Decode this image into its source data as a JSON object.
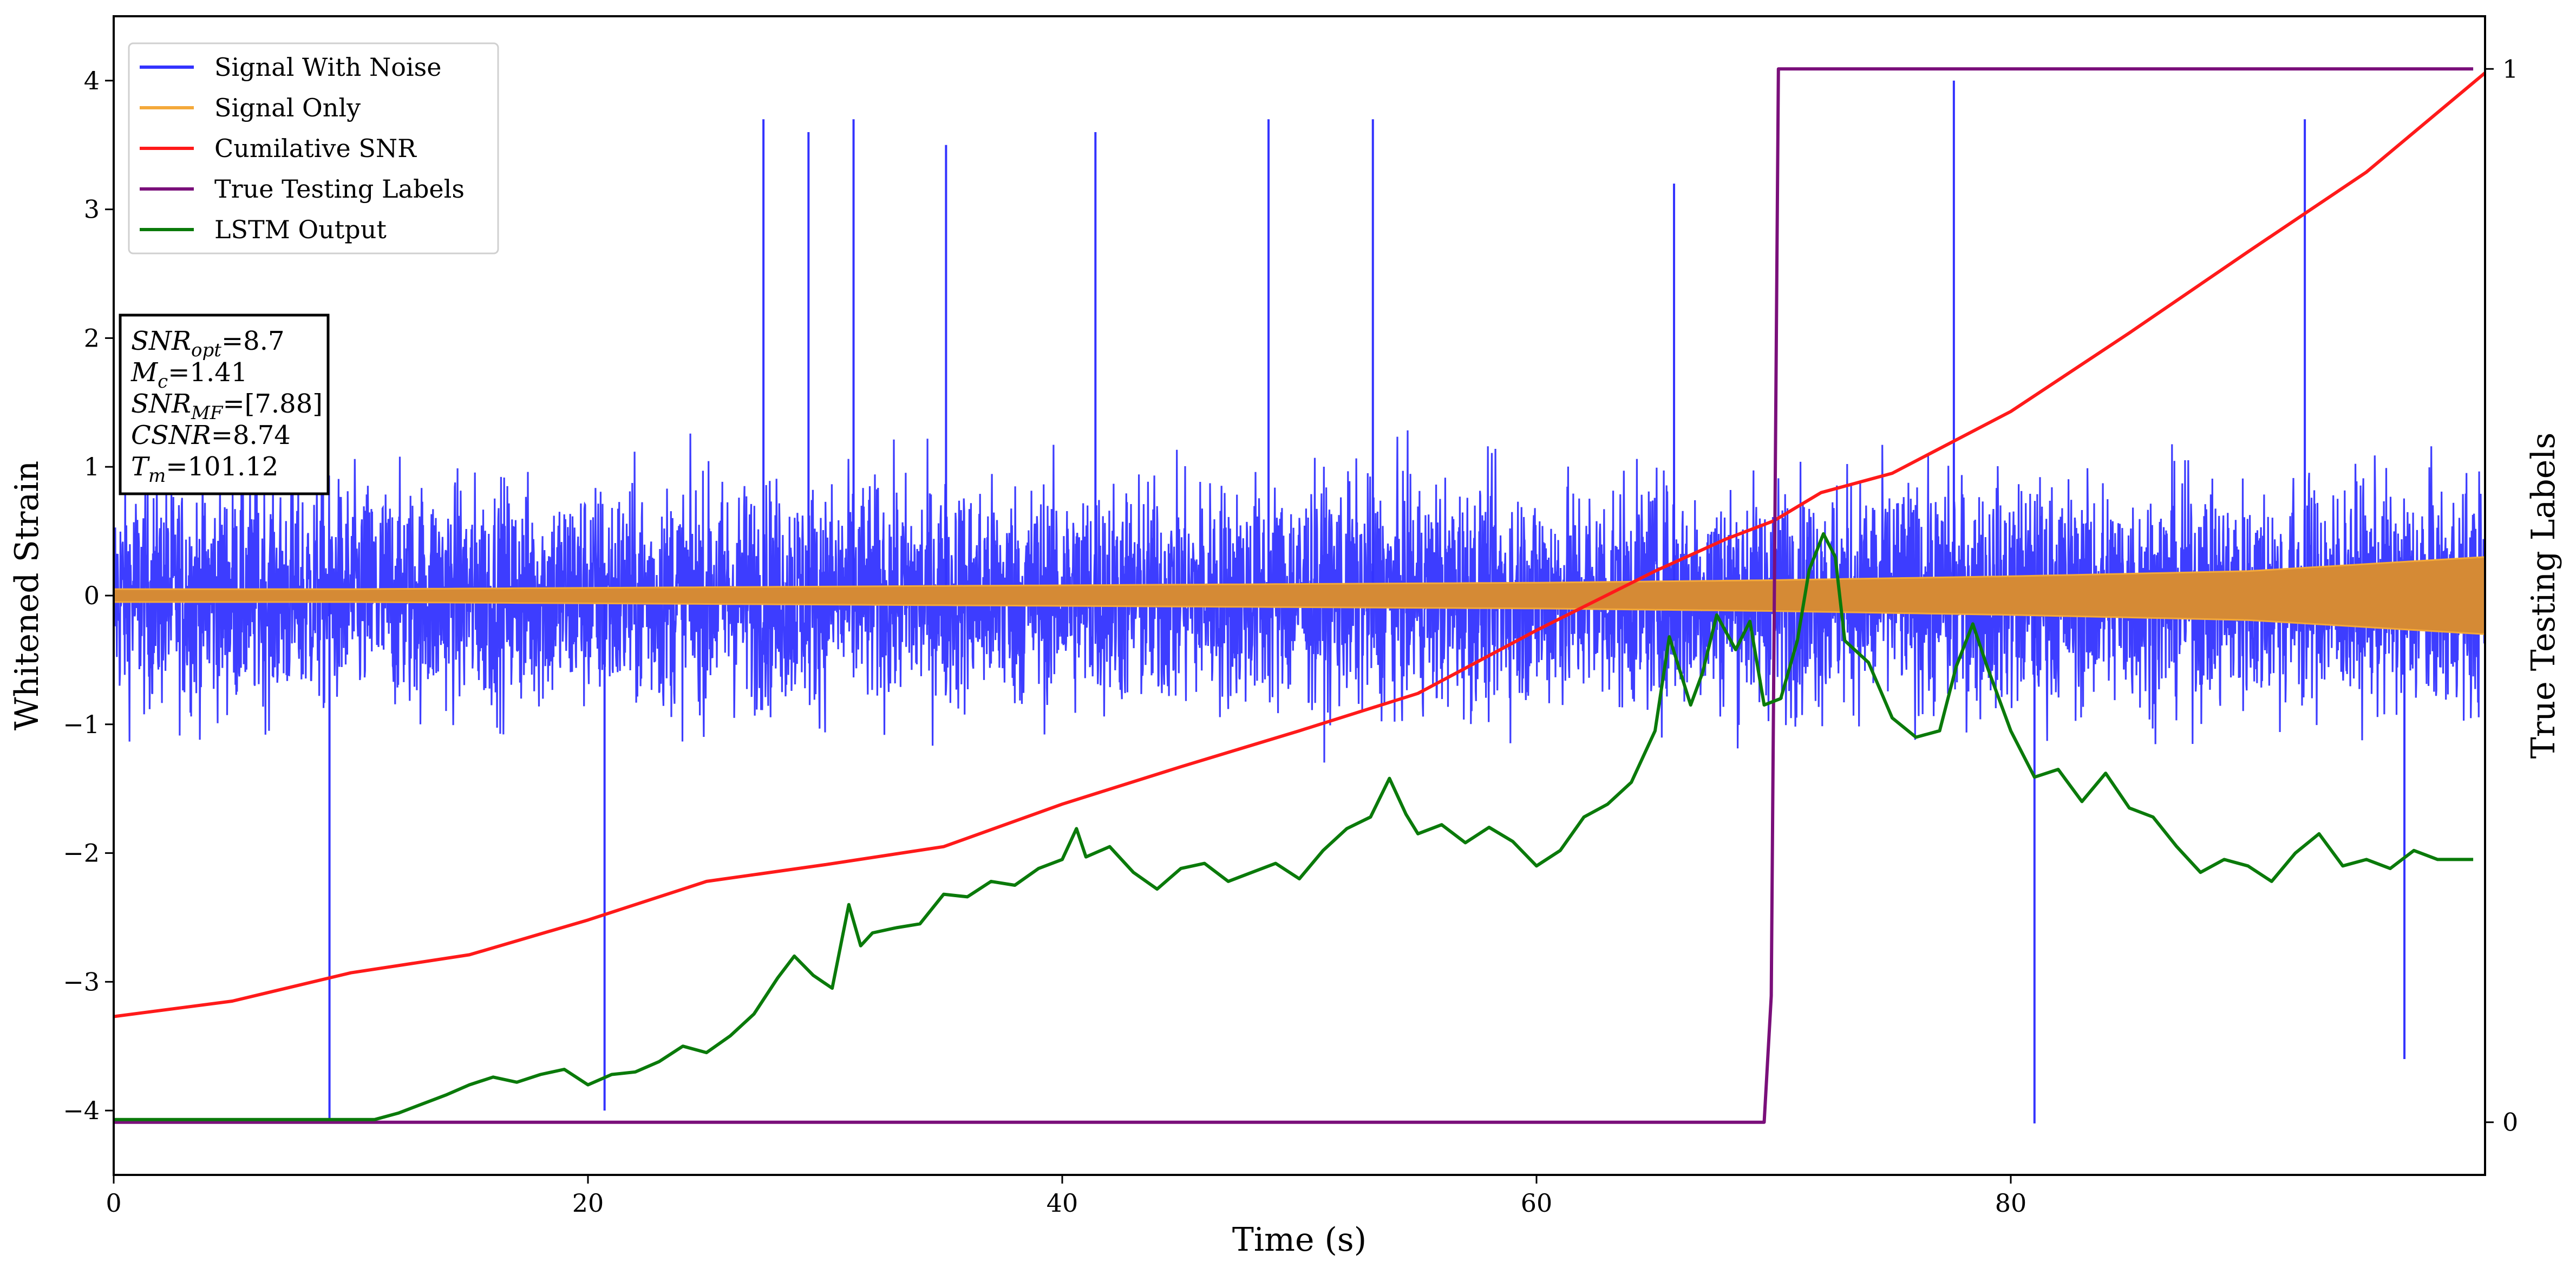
{
  "chart_data": {
    "type": "line",
    "xlabel": "Time (s)",
    "ylabel": "Whitened Strain",
    "y2label": "True Testing Labels",
    "xlim": [
      0,
      100
    ],
    "ylim": [
      -4.5,
      4.5
    ],
    "y2lim": [
      -0.05,
      1.05
    ],
    "x_ticks": [
      0,
      20,
      40,
      60,
      80
    ],
    "x_tick_labels": [
      "0",
      "20",
      "40",
      "60",
      "80"
    ],
    "y_ticks": [
      -4,
      -3,
      -2,
      -1,
      0,
      1,
      2,
      3,
      4
    ],
    "y_tick_labels": [
      "−4",
      "−3",
      "−2",
      "−1",
      "0",
      "1",
      "2",
      "3",
      "4"
    ],
    "y2_ticks": [
      0,
      1
    ],
    "y2_tick_labels": [
      "0",
      "1"
    ],
    "grid": false,
    "legend_position": "top-left",
    "series": [
      {
        "name": "Signal With Noise",
        "color": "#3333ff",
        "axis": "left",
        "style": "dense noise band",
        "typical_range": [
          -1.5,
          1.5
        ],
        "notable_peaks": [
          {
            "x": 9.1,
            "y": -4.1
          },
          {
            "x": 20.7,
            "y": -4.0
          },
          {
            "x": 27.4,
            "y": 3.7
          },
          {
            "x": 29.3,
            "y": 3.6
          },
          {
            "x": 31.2,
            "y": 3.7
          },
          {
            "x": 35.1,
            "y": 3.5
          },
          {
            "x": 41.4,
            "y": 3.6
          },
          {
            "x": 48.7,
            "y": 3.7
          },
          {
            "x": 53.1,
            "y": 3.7
          },
          {
            "x": 65.8,
            "y": 3.2
          },
          {
            "x": 77.6,
            "y": 4.0
          },
          {
            "x": 81.0,
            "y": -4.1
          },
          {
            "x": 92.4,
            "y": 3.7
          },
          {
            "x": 96.6,
            "y": -3.6
          }
        ]
      },
      {
        "name": "Signal Only",
        "color": "#f4a93a",
        "axis": "left",
        "style": "chirp envelope",
        "envelope": {
          "x": [
            0,
            10,
            20,
            30,
            40,
            50,
            60,
            70,
            80,
            90,
            100
          ],
          "amplitude": [
            0.05,
            0.05,
            0.06,
            0.07,
            0.08,
            0.09,
            0.1,
            0.12,
            0.15,
            0.19,
            0.3
          ]
        }
      },
      {
        "name": "Cumilative SNR",
        "color": "#ff1a1a",
        "axis": "left",
        "x": [
          0,
          5,
          10,
          15,
          20,
          25,
          30,
          35,
          40,
          45,
          50,
          55,
          60,
          65,
          68,
          70,
          72,
          75,
          80,
          85,
          90,
          95,
          100
        ],
        "y": [
          -3.27,
          -3.15,
          -2.93,
          -2.79,
          -2.52,
          -2.22,
          -2.09,
          -1.95,
          -1.62,
          -1.33,
          -1.05,
          -0.76,
          -0.27,
          0.19,
          0.44,
          0.58,
          0.8,
          0.95,
          1.43,
          2.04,
          2.67,
          3.29,
          4.06
        ]
      },
      {
        "name": "True Testing Labels",
        "color": "#7a0f7a",
        "axis": "right",
        "x": [
          0,
          69.6,
          69.9,
          70.2,
          99.5
        ],
        "y": [
          0,
          0,
          0.12,
          1,
          1
        ]
      },
      {
        "name": "LSTM Output",
        "color": "#0a7a0a",
        "axis": "left",
        "x": [
          0,
          11,
          12,
          13,
          14,
          15,
          16,
          17,
          18,
          19,
          20,
          21,
          22,
          23,
          24,
          25,
          26,
          27,
          28,
          28.7,
          29.5,
          30.3,
          31,
          31.5,
          32,
          33,
          34,
          35,
          36,
          37,
          38,
          39,
          40,
          40.6,
          41,
          42,
          43,
          44,
          45,
          46,
          47,
          48,
          49,
          50,
          51,
          52,
          53,
          53.8,
          54.5,
          55,
          56,
          57,
          58,
          59,
          60,
          61,
          62,
          63,
          64,
          65,
          65.6,
          66.5,
          67,
          67.6,
          68.4,
          69,
          69.6,
          70.3,
          71,
          71.5,
          72.1,
          72.6,
          73,
          74,
          75,
          76,
          77,
          77.7,
          78.4,
          79,
          80,
          81,
          82,
          83,
          84,
          85,
          86,
          87,
          88,
          89,
          90,
          91,
          92,
          93,
          94,
          95,
          96,
          97,
          98,
          99.5
        ],
        "y": [
          -4.07,
          -4.07,
          -4.02,
          -3.95,
          -3.88,
          -3.8,
          -3.74,
          -3.78,
          -3.72,
          -3.68,
          -3.8,
          -3.72,
          -3.7,
          -3.62,
          -3.5,
          -3.55,
          -3.42,
          -3.25,
          -2.97,
          -2.8,
          -2.95,
          -3.05,
          -2.4,
          -2.72,
          -2.62,
          -2.58,
          -2.55,
          -2.32,
          -2.34,
          -2.22,
          -2.25,
          -2.12,
          -2.05,
          -1.81,
          -2.03,
          -1.95,
          -2.15,
          -2.28,
          -2.12,
          -2.08,
          -2.22,
          -2.15,
          -2.08,
          -2.2,
          -1.98,
          -1.81,
          -1.72,
          -1.42,
          -1.7,
          -1.85,
          -1.78,
          -1.92,
          -1.8,
          -1.91,
          -2.1,
          -1.98,
          -1.72,
          -1.62,
          -1.45,
          -1.05,
          -0.32,
          -0.85,
          -0.6,
          -0.15,
          -0.42,
          -0.2,
          -0.85,
          -0.8,
          -0.35,
          0.2,
          0.48,
          0.3,
          -0.35,
          -0.52,
          -0.95,
          -1.1,
          -1.05,
          -0.55,
          -0.22,
          -0.55,
          -1.05,
          -1.41,
          -1.35,
          -1.6,
          -1.38,
          -1.65,
          -1.72,
          -1.95,
          -2.15,
          -2.05,
          -2.1,
          -2.22,
          -2.0,
          -1.85,
          -2.1,
          -2.05,
          -2.12,
          -1.98,
          -2.05,
          -2.05
        ]
      }
    ],
    "annotation_lines": [
      {
        "label": "SNR",
        "sub": "opt",
        "value": "=8.7"
      },
      {
        "label": "M",
        "sub": "c",
        "value": "=1.41"
      },
      {
        "label": "SNR",
        "sub": "MF",
        "value": "=[7.88]"
      },
      {
        "label": "CSNR",
        "sub": "",
        "value": "=8.74"
      },
      {
        "label": "T",
        "sub": "m",
        "value": "=101.12"
      }
    ]
  }
}
